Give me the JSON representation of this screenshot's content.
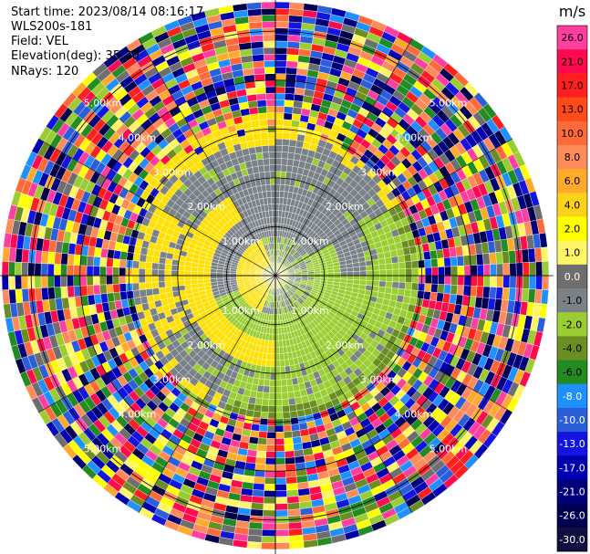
{
  "info": {
    "start_time": "Start time: 2023/08/14 08:16:17",
    "instrument": "WLS200s-181",
    "field": "Field: VEL",
    "elevation": "Elevation(deg): 35.30",
    "nrays": "NRays: 120"
  },
  "colorbar": {
    "unit": "m/s",
    "ticks": [
      "26.0",
      "21.0",
      "17.0",
      "13.0",
      "10.0",
      "8.0",
      "6.0",
      "4.0",
      "2.0",
      "1.0",
      "0.0",
      "-1.0",
      "-2.0",
      "-4.0",
      "-6.0",
      "-8.0",
      "-10.0",
      "-13.0",
      "-17.0",
      "-21.0",
      "-26.0",
      "-30.0"
    ],
    "colors": [
      "#ff3fa0",
      "#ff0a4e",
      "#ff1f1f",
      "#ff4a1a",
      "#ff6a3a",
      "#ff8a5a",
      "#ffaa2a",
      "#ffd21a",
      "#ffff00",
      "#fff566",
      "#6e6e6e",
      "#7a8288",
      "#9acd32",
      "#6b8e23",
      "#228b22",
      "#1e90ff",
      "#2b5fd9",
      "#1414e0",
      "#0000b0",
      "#00007a",
      "#000050",
      "#101040"
    ]
  },
  "chart_data": {
    "type": "ppi",
    "field": "VEL",
    "unit": "m/s",
    "nrays": 120,
    "range_rings_km": [
      1.0,
      2.0,
      3.0,
      4.0,
      5.0
    ],
    "ring_labels": [
      "1.00km",
      "2.00km",
      "3.00km",
      "4.00km",
      "5.00km"
    ],
    "value_range": [
      -30.0,
      26.0
    ],
    "grid": true
  }
}
